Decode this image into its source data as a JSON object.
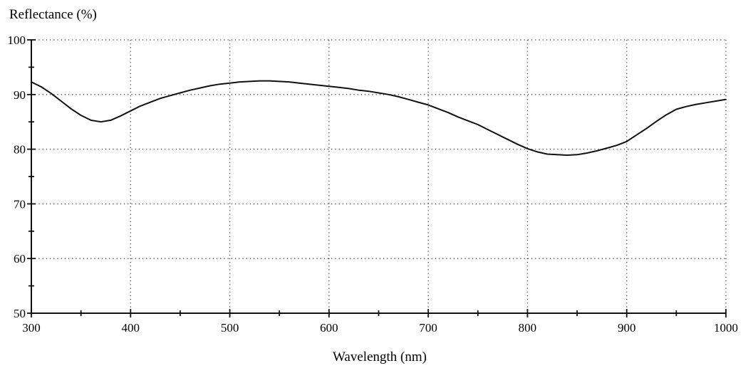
{
  "chart_data": {
    "type": "line",
    "title": "",
    "ylabel": "Reflectance (%)",
    "xlabel": "Wavelength (nm)",
    "xlim": [
      300,
      1000
    ],
    "ylim": [
      50,
      100
    ],
    "x_major_ticks": [
      300,
      400,
      500,
      600,
      700,
      800,
      900,
      1000
    ],
    "x_minor_ticks": [
      350,
      450,
      550,
      650,
      750,
      850,
      950
    ],
    "y_major_ticks": [
      50,
      60,
      70,
      80,
      90,
      100
    ],
    "y_minor_ticks": [
      55,
      65,
      75,
      85,
      95
    ],
    "grid": "dotted lines at major ticks only",
    "legend": "none",
    "line_color": "#111111",
    "background_color": "#ffffff",
    "series": [
      {
        "name": "reflectance",
        "x": [
          300,
          310,
          320,
          330,
          340,
          350,
          360,
          370,
          380,
          390,
          400,
          410,
          420,
          430,
          440,
          450,
          460,
          470,
          480,
          490,
          500,
          510,
          520,
          530,
          540,
          550,
          560,
          570,
          580,
          590,
          600,
          610,
          620,
          630,
          640,
          650,
          660,
          670,
          680,
          690,
          700,
          710,
          720,
          730,
          740,
          750,
          760,
          770,
          780,
          790,
          800,
          810,
          820,
          830,
          840,
          850,
          860,
          870,
          880,
          890,
          900,
          910,
          920,
          930,
          940,
          950,
          960,
          970,
          980,
          990,
          1000
        ],
        "y": [
          92.3,
          91.4,
          90.2,
          88.8,
          87.4,
          86.2,
          85.3,
          85.0,
          85.3,
          86.1,
          87.0,
          87.9,
          88.6,
          89.3,
          89.8,
          90.3,
          90.8,
          91.2,
          91.6,
          91.9,
          92.1,
          92.3,
          92.4,
          92.5,
          92.5,
          92.4,
          92.3,
          92.1,
          91.9,
          91.7,
          91.5,
          91.3,
          91.1,
          90.8,
          90.6,
          90.3,
          90.0,
          89.6,
          89.1,
          88.6,
          88.1,
          87.4,
          86.7,
          85.9,
          85.2,
          84.5,
          83.6,
          82.7,
          81.8,
          80.9,
          80.1,
          79.5,
          79.1,
          79.0,
          78.9,
          79.0,
          79.3,
          79.7,
          80.2,
          80.7,
          81.4,
          82.6,
          83.8,
          85.1,
          86.3,
          87.3,
          87.8,
          88.2,
          88.5,
          88.8,
          89.1
        ]
      }
    ]
  }
}
